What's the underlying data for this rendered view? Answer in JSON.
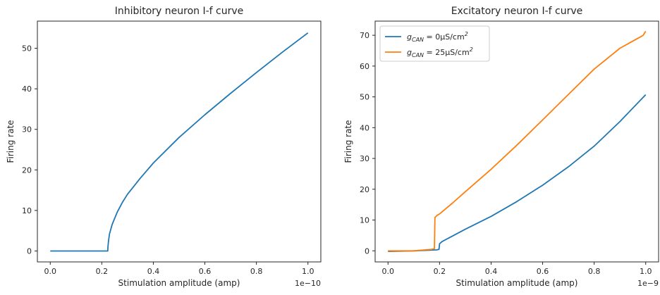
{
  "chart_data": [
    {
      "type": "line",
      "title": "Inhibitory neuron I-f curve",
      "xlabel": "Stimulation amplitude (amp)",
      "ylabel": "Firing rate",
      "x_offset_label": "1e−10",
      "xlim": [
        -0.05,
        1.05
      ],
      "ylim": [
        -2.7,
        56.7
      ],
      "xticks": [
        0.0,
        0.2,
        0.4,
        0.6,
        0.8,
        1.0
      ],
      "xtick_labels": [
        "0.0",
        "0.2",
        "0.4",
        "0.6",
        "0.8",
        "1.0"
      ],
      "yticks": [
        0,
        10,
        20,
        30,
        40,
        50
      ],
      "ytick_labels": [
        "0",
        "10",
        "20",
        "30",
        "40",
        "50"
      ],
      "series": [
        {
          "color": "#1f77b4",
          "x": [
            0.0,
            0.223,
            0.224,
            0.226,
            0.23,
            0.24,
            0.26,
            0.28,
            0.3,
            0.35,
            0.4,
            0.5,
            0.6,
            0.7,
            0.8,
            0.9,
            1.0
          ],
          "y": [
            0,
            0,
            1.0,
            2.5,
            4.2,
            6.5,
            9.6,
            12.0,
            14.0,
            18.0,
            21.7,
            28.0,
            33.6,
            38.9,
            44.0,
            49.0,
            53.8
          ]
        }
      ]
    },
    {
      "type": "line",
      "title": "Excitatory neuron I-f curve",
      "xlabel": "Stimulation amplitude (amp)",
      "ylabel": "Firing rate",
      "x_offset_label": "1e−9",
      "xlim": [
        -0.05,
        1.05
      ],
      "ylim": [
        -3.6,
        74.6
      ],
      "xticks": [
        0.0,
        0.2,
        0.4,
        0.6,
        0.8,
        1.0
      ],
      "xtick_labels": [
        "0.0",
        "0.2",
        "0.4",
        "0.6",
        "0.8",
        "1.0"
      ],
      "yticks": [
        0,
        10,
        20,
        30,
        40,
        50,
        60,
        70
      ],
      "ytick_labels": [
        "0",
        "10",
        "20",
        "30",
        "40",
        "50",
        "60",
        "70"
      ],
      "legend_position": "top-left",
      "series": [
        {
          "name_parts": {
            "g": "g",
            "sub": "CAN",
            "rest": " = 0μS/cm",
            "sup": "2"
          },
          "color": "#1f77b4",
          "x": [
            0.0,
            0.1,
            0.19,
            0.198,
            0.2,
            0.21,
            0.25,
            0.3,
            0.4,
            0.5,
            0.6,
            0.7,
            0.8,
            0.9,
            1.0
          ],
          "y": [
            -0.2,
            0.0,
            0.3,
            0.5,
            2.3,
            3.0,
            4.8,
            7.0,
            11.2,
            16.0,
            21.3,
            27.3,
            34.0,
            42.0,
            50.7
          ]
        },
        {
          "name_parts": {
            "g": "g",
            "sub": "CAN",
            "rest": " = 25μS/cm",
            "sup": "2"
          },
          "color": "#ff7f0e",
          "x": [
            0.0,
            0.1,
            0.17,
            0.18,
            0.182,
            0.19,
            0.2,
            0.25,
            0.3,
            0.4,
            0.5,
            0.6,
            0.7,
            0.8,
            0.9,
            0.98,
            0.99,
            1.0
          ],
          "y": [
            0.0,
            0.0,
            0.5,
            0.7,
            10.8,
            11.5,
            12.0,
            15.5,
            19.2,
            26.5,
            34.3,
            42.5,
            50.8,
            59.0,
            65.8,
            69.5,
            70.0,
            71.3
          ]
        }
      ]
    }
  ]
}
